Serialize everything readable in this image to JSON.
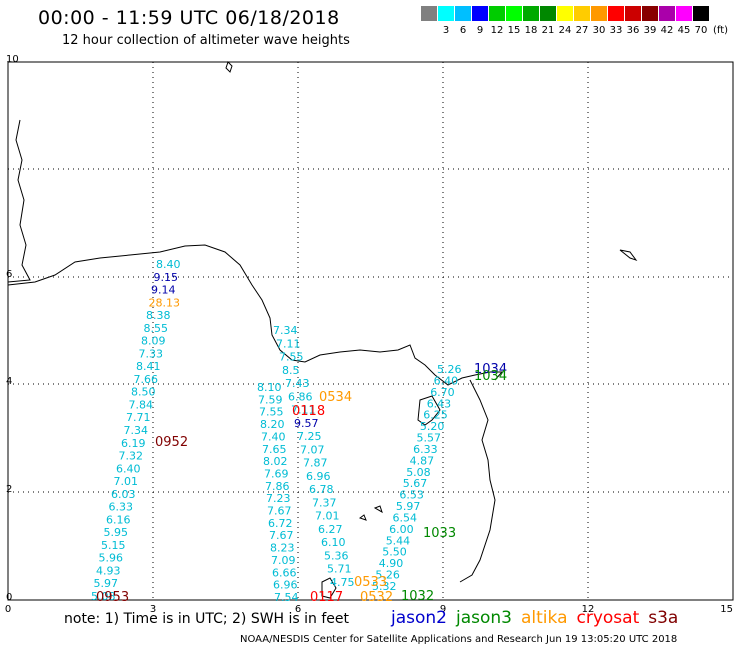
{
  "header": {
    "title": "00:00 - 11:59 UTC 06/18/2018",
    "subtitle": "12 hour collection of altimeter wave heights"
  },
  "legend": {
    "swatches": [
      {
        "color": "#808080",
        "label": ""
      },
      {
        "color": "#00ffff",
        "label": "3"
      },
      {
        "color": "#00bfff",
        "label": "6"
      },
      {
        "color": "#0000ff",
        "label": "9"
      },
      {
        "color": "#00cc00",
        "label": "12"
      },
      {
        "color": "#00ff00",
        "label": "15"
      },
      {
        "color": "#00aa00",
        "label": "18"
      },
      {
        "color": "#008800",
        "label": "21"
      },
      {
        "color": "#ffff00",
        "label": "24"
      },
      {
        "color": "#ffcc00",
        "label": "27"
      },
      {
        "color": "#ff9900",
        "label": "30"
      },
      {
        "color": "#ff0000",
        "label": "33"
      },
      {
        "color": "#cc0000",
        "label": "36"
      },
      {
        "color": "#880000",
        "label": "39"
      },
      {
        "color": "#aa00aa",
        "label": "42"
      },
      {
        "color": "#ff00ff",
        "label": "45"
      },
      {
        "color": "#000000",
        "label": "70"
      }
    ],
    "unit": "(ft)"
  },
  "map": {
    "x_ticks": [
      "0",
      "3",
      "6",
      "9",
      "12",
      "15"
    ],
    "y_ticks": [
      "0",
      "2",
      "4",
      "6",
      "10"
    ],
    "colors": {
      "cyan": "#00bcd4",
      "navy": "#0000aa",
      "orange": "#ff9900",
      "red": "#ff0000",
      "darkred": "#800000",
      "green": "#008800"
    },
    "tracks": [
      {
        "name": "track-west",
        "values": [
          "8.40",
          "9.15",
          "9.14",
          "28.13",
          "8.38",
          "8.55",
          "8.09",
          "7.33",
          "8.41",
          "7.66",
          "8.50",
          "7.84",
          "7.71",
          "7.34",
          "6.19",
          "7.32",
          "6.40",
          "7.01",
          "6.03",
          "6.33",
          "6.16",
          "5.95",
          "5.15",
          "5.96",
          "4.93",
          "5.97",
          "5.08"
        ]
      },
      {
        "name": "track-center-a",
        "values": [
          "7.34",
          "7.11",
          "7.55",
          "8.5",
          "7.43",
          "6.86",
          "7.11",
          "9.57",
          "7.25",
          "7.07",
          "7.87",
          "6.96",
          "6.78",
          "7.37",
          "7.01",
          "6.27",
          "6.10",
          "5.36",
          "5.71",
          "4.75"
        ]
      },
      {
        "name": "track-center-b",
        "values": [
          "8.10",
          "7.59",
          "7.55",
          "8.20",
          "7.40",
          "7.65",
          "8.02",
          "7.69",
          "7.86",
          "7.23",
          "7.67",
          "6.72",
          "7.67",
          "8.23",
          "7.09",
          "6.66",
          "6.96",
          "7.54"
        ]
      },
      {
        "name": "track-east",
        "values": [
          "5.26",
          "6.40",
          "6.70",
          "6.43",
          "6.25",
          "5.20",
          "5.57",
          "6.33",
          "4.87",
          "5.08",
          "5.67",
          "6.53",
          "5.97",
          "6.54",
          "6.00",
          "5.44",
          "5.50",
          "4.90",
          "5.26",
          "5.32"
        ]
      }
    ],
    "time_labels": [
      {
        "text": "0952",
        "color": "#800000"
      },
      {
        "text": "0953",
        "color": "#800000"
      },
      {
        "text": "0534",
        "color": "#ff9900"
      },
      {
        "text": "0118",
        "color": "#ff0000"
      },
      {
        "text": "1034",
        "color": "#0000aa"
      },
      {
        "text": "1034",
        "color": "#008800"
      },
      {
        "text": "1033",
        "color": "#008800"
      },
      {
        "text": "0117",
        "color": "#ff0000"
      },
      {
        "text": "0533",
        "color": "#ff9900"
      },
      {
        "text": "0532",
        "color": "#ff9900"
      },
      {
        "text": "1032",
        "color": "#008800"
      }
    ]
  },
  "footer": {
    "note": "note: 1) Time is in UTC; 2) SWH is in feet",
    "satellites": [
      {
        "name": "jason2",
        "color": "#0000cc"
      },
      {
        "name": "jason3",
        "color": "#008800"
      },
      {
        "name": "altika",
        "color": "#ff9900"
      },
      {
        "name": "cryosat",
        "color": "#ff0000"
      },
      {
        "name": "s3a",
        "color": "#800000"
      }
    ],
    "credit": "NOAA/NESDIS Center for Satellite Applications and Research   Jun 19 13:05:20 UTC 2018"
  }
}
